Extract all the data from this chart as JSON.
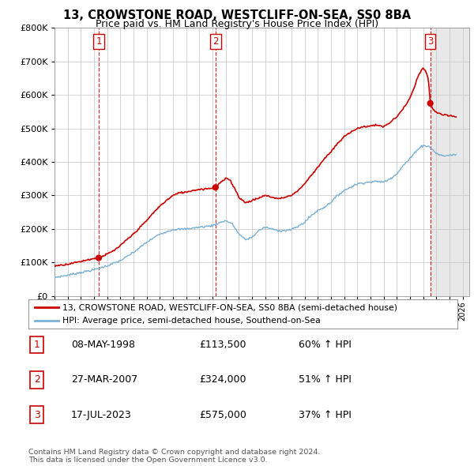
{
  "title": "13, CROWSTONE ROAD, WESTCLIFF-ON-SEA, SS0 8BA",
  "subtitle": "Price paid vs. HM Land Registry's House Price Index (HPI)",
  "legend_line1": "13, CROWSTONE ROAD, WESTCLIFF-ON-SEA, SS0 8BA (semi-detached house)",
  "legend_line2": "HPI: Average price, semi-detached house, Southend-on-Sea",
  "transactions": [
    {
      "num": 1,
      "date": "08-MAY-1998",
      "price": 113500,
      "year": 1998.36,
      "pct": "60% ↑ HPI"
    },
    {
      "num": 2,
      "date": "27-MAR-2007",
      "price": 324000,
      "year": 2007.23,
      "pct": "51% ↑ HPI"
    },
    {
      "num": 3,
      "date": "17-JUL-2023",
      "price": 575000,
      "year": 2023.54,
      "pct": "37% ↑ HPI"
    }
  ],
  "footnote1": "Contains HM Land Registry data © Crown copyright and database right 2024.",
  "footnote2": "This data is licensed under the Open Government Licence v3.0.",
  "hpi_color": "#7ab0d4",
  "price_color": "#cc0000",
  "vline_color": "#cc0000",
  "shade_color": "#e8e8e8",
  "background_color": "#ffffff",
  "grid_color": "#cccccc",
  "ylim": [
    0,
    800000
  ],
  "xlim_start": 1995.0,
  "xlim_end": 2026.5,
  "yticks": [
    0,
    100000,
    200000,
    300000,
    400000,
    500000,
    600000,
    700000,
    800000
  ],
  "xticks": [
    1995,
    1996,
    1997,
    1998,
    1999,
    2000,
    2001,
    2002,
    2003,
    2004,
    2005,
    2006,
    2007,
    2008,
    2009,
    2010,
    2011,
    2012,
    2013,
    2014,
    2015,
    2016,
    2017,
    2018,
    2019,
    2020,
    2021,
    2022,
    2023,
    2024,
    2025,
    2026
  ]
}
